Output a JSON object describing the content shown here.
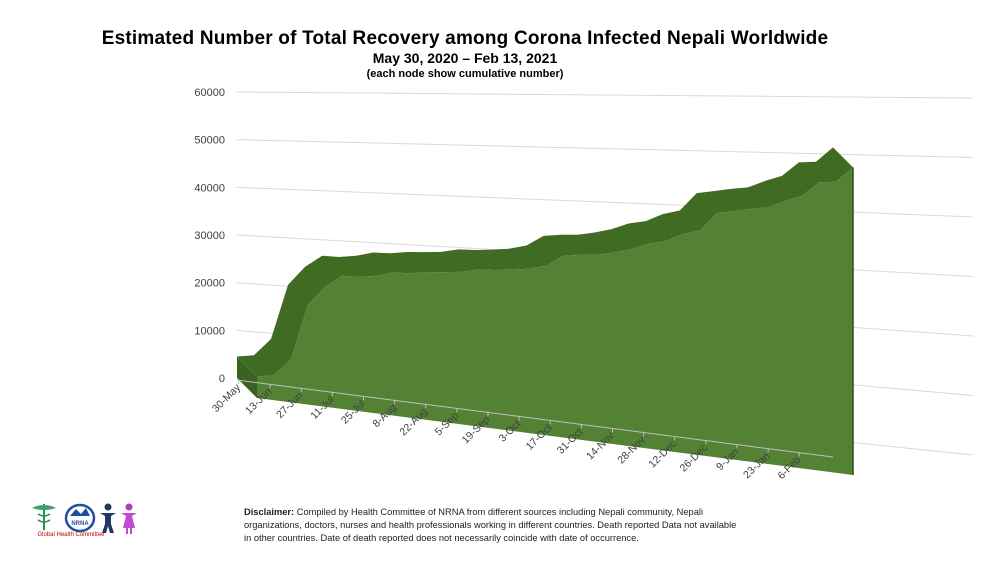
{
  "header": {
    "title": "Estimated Number of Total Recovery among Corona Infected Nepali Worldwide",
    "subtitle": "May 30, 2020 – Feb 13, 2021",
    "note": "(each node show cumulative number)"
  },
  "chart_data": {
    "type": "area",
    "title": "Estimated Number of Total Recovery among Corona Infected Nepali Worldwide",
    "subtitle": "May 30, 2020 – Feb 13, 2021",
    "xlabel": "",
    "ylabel": "",
    "ylim": [
      0,
      60000
    ],
    "yticks": [
      0,
      10000,
      20000,
      30000,
      40000,
      50000,
      60000
    ],
    "xtick_labels": [
      "30-May",
      "13-Jun",
      "27-Jun",
      "11-Jul",
      "25-Jul",
      "8-Aug",
      "22-Aug",
      "5-Sep",
      "19-Sep",
      "3-Oct",
      "17-Oct",
      "31-Oct",
      "14-Nov",
      "28-Nov",
      "12-Dec",
      "26-Dec",
      "9-Jan",
      "23-Jan",
      "6-Feb"
    ],
    "grid": true,
    "style": "3d",
    "series": [
      {
        "color": "#548235",
        "values": [
          4500,
          5200,
          9000,
          20500,
          24500,
          27000,
          27000,
          27500,
          28400,
          28500,
          29000,
          29200,
          29500,
          30200,
          30300,
          30600,
          31000,
          31800,
          33800,
          34200,
          34400,
          35000,
          35800,
          37000,
          37600,
          39000,
          39800,
          43000,
          43500,
          44000,
          44400,
          45600,
          46600,
          49000,
          49200,
          51700
        ]
      }
    ]
  },
  "disclaimer": {
    "label": "Disclaimer:",
    "text": " Compiled by Health Committee  of NRNA from different sources including Nepali community, Nepali organizations, doctors, nurses and health professionals working in different countries. Death reported Data not available in other countries. Date of death reported does not necessarily coincide with date of occurrence."
  },
  "logo": {
    "badge_text": "NRNA",
    "caption": "Global Health Committee"
  }
}
